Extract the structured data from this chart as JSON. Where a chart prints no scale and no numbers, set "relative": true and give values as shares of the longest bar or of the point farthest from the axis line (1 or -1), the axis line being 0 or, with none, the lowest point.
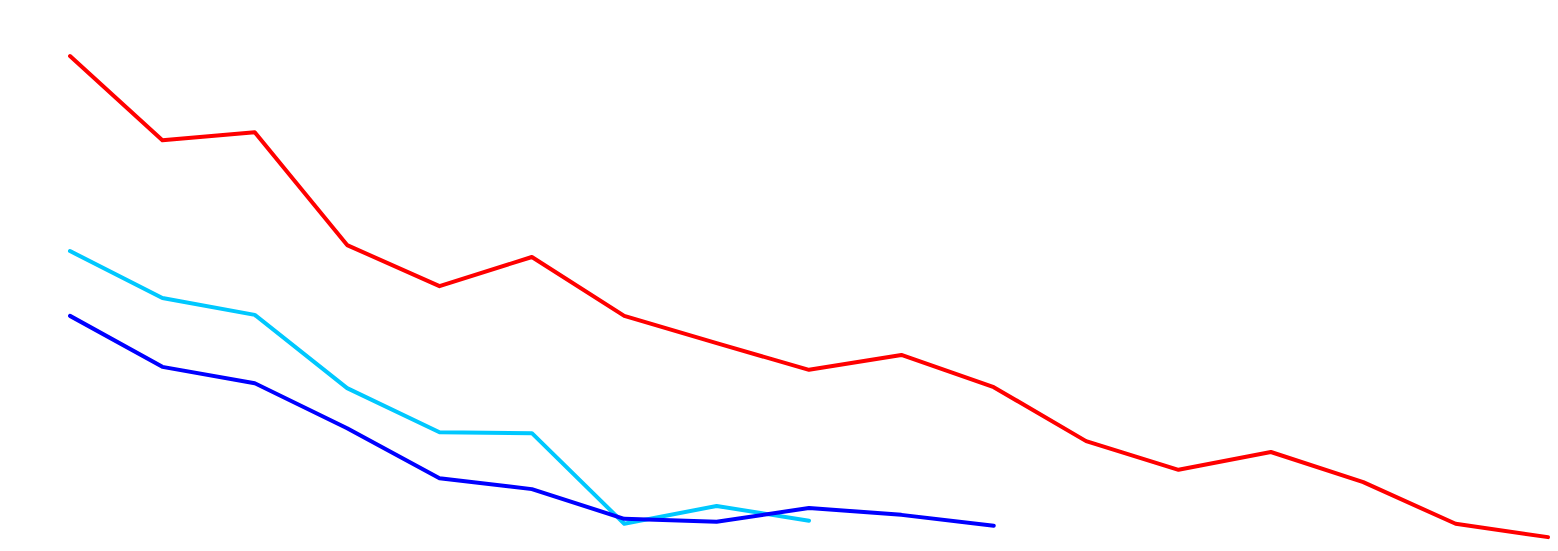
{
  "chart_data": {
    "type": "line",
    "relative": true,
    "legend": false,
    "categories": [
      null,
      null,
      null,
      null,
      null,
      null,
      null,
      null,
      null,
      null,
      null,
      null,
      null,
      null,
      null,
      null,
      null
    ],
    "series": [
      {
        "color": "#ff0000",
        "values": [
          1,
          0.83,
          0.846,
          0.618,
          0.535,
          0.594,
          0.475,
          0.42,
          0.366,
          0.396,
          0.331,
          0.222,
          0.164,
          0.2,
          0.139,
          0.055,
          0.028
        ]
      },
      {
        "color": "#00c8ff",
        "values": [
          0.606,
          0.511,
          0.477,
          0.329,
          0.24,
          0.238,
          0.055,
          0.091,
          0.061,
          null,
          null,
          null,
          null,
          null,
          null,
          null,
          null
        ]
      },
      {
        "color": "#0000ff",
        "values": [
          0.475,
          0.372,
          0.339,
          0.248,
          0.147,
          0.125,
          0.065,
          0.059,
          0.087,
          0.073,
          0.051,
          null,
          null,
          null,
          null,
          null,
          null
        ]
      }
    ]
  }
}
